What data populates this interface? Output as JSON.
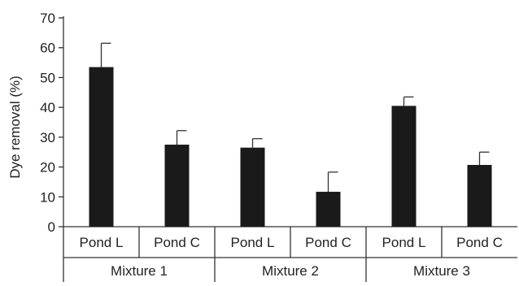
{
  "chart_data": {
    "type": "bar",
    "title": "",
    "xlabel": "",
    "ylabel": "Dye removal (%)",
    "ylim": [
      0,
      70
    ],
    "yticks": [
      0,
      10,
      20,
      30,
      40,
      50,
      60,
      70
    ],
    "grid": false,
    "legend": "none",
    "bar_color": "#1a1a1a",
    "categories": [
      "Pond L",
      "Pond C",
      "Pond L",
      "Pond C",
      "Pond L",
      "Pond C"
    ],
    "groups": [
      "Mixture 1",
      "Mixture 2",
      "Mixture 3"
    ],
    "values": [
      53.5,
      27.5,
      26.5,
      11.7,
      40.5,
      20.7
    ],
    "error_upper": [
      61.5,
      32.2,
      29.5,
      18.3,
      43.5,
      25.0
    ]
  }
}
